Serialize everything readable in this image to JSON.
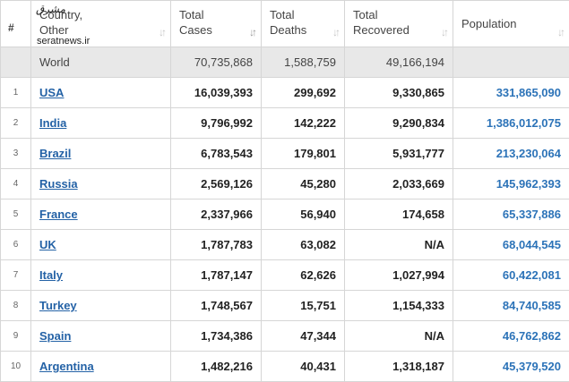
{
  "watermark": {
    "line1": "مشرق",
    "line2": "seratnews.ir"
  },
  "headers": {
    "num": "#",
    "country": [
      "Country,",
      "Other"
    ],
    "cases": [
      "Total",
      "Cases"
    ],
    "deaths": [
      "Total",
      "Deaths"
    ],
    "recovered": [
      "Total",
      "Recovered"
    ],
    "population": "Population"
  },
  "sort_glyph": "↓↑",
  "world": {
    "label": "World",
    "cases": "70,735,868",
    "deaths": "1,588,759",
    "recovered": "49,166,194",
    "population": ""
  },
  "rows": [
    {
      "rank": "1",
      "country": "USA",
      "cases": "16,039,393",
      "deaths": "299,692",
      "recovered": "9,330,865",
      "population": "331,865,090"
    },
    {
      "rank": "2",
      "country": "India",
      "cases": "9,796,992",
      "deaths": "142,222",
      "recovered": "9,290,834",
      "population": "1,386,012,075"
    },
    {
      "rank": "3",
      "country": "Brazil",
      "cases": "6,783,543",
      "deaths": "179,801",
      "recovered": "5,931,777",
      "population": "213,230,064"
    },
    {
      "rank": "4",
      "country": "Russia",
      "cases": "2,569,126",
      "deaths": "45,280",
      "recovered": "2,033,669",
      "population": "145,962,393"
    },
    {
      "rank": "5",
      "country": "France",
      "cases": "2,337,966",
      "deaths": "56,940",
      "recovered": "174,658",
      "population": "65,337,886"
    },
    {
      "rank": "6",
      "country": "UK",
      "cases": "1,787,783",
      "deaths": "63,082",
      "recovered": "N/A",
      "population": "68,044,545"
    },
    {
      "rank": "7",
      "country": "Italy",
      "cases": "1,787,147",
      "deaths": "62,626",
      "recovered": "1,027,994",
      "population": "60,422,081"
    },
    {
      "rank": "8",
      "country": "Turkey",
      "cases": "1,748,567",
      "deaths": "15,751",
      "recovered": "1,154,333",
      "population": "84,740,585"
    },
    {
      "rank": "9",
      "country": "Spain",
      "cases": "1,734,386",
      "deaths": "47,344",
      "recovered": "N/A",
      "population": "46,762,862"
    },
    {
      "rank": "10",
      "country": "Argentina",
      "cases": "1,482,216",
      "deaths": "40,431",
      "recovered": "1,318,187",
      "population": "45,379,520"
    }
  ]
}
